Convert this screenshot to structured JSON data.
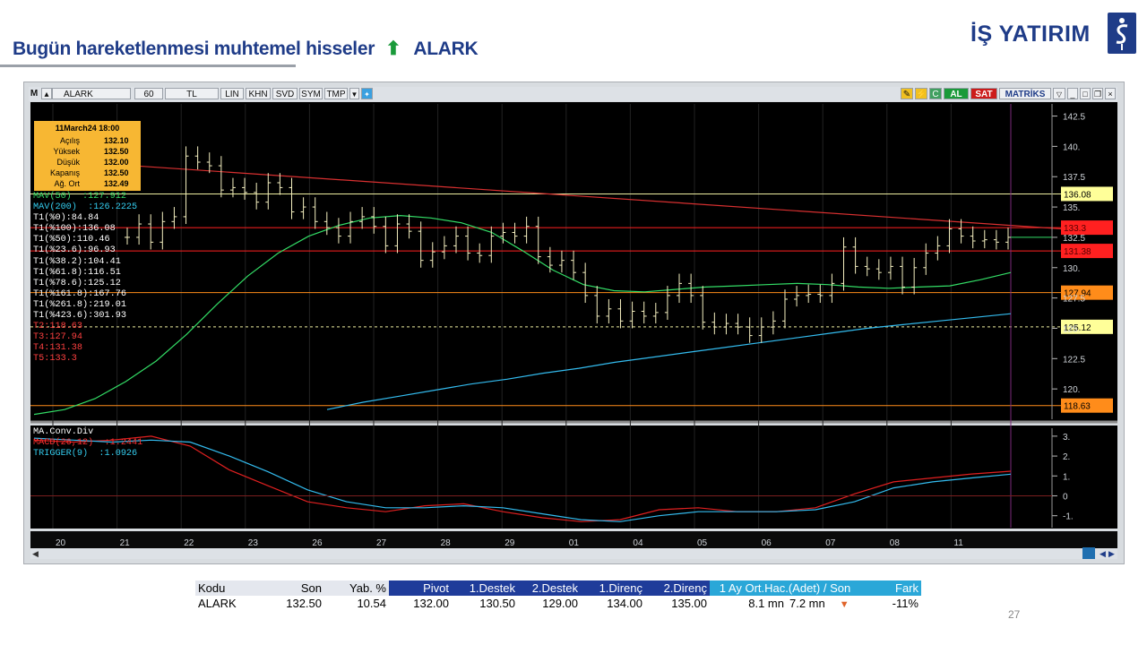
{
  "header": {
    "title": "Bugün hareketlenmesi muhtemel hisseler",
    "arrow_icon": "up-arrow-icon",
    "ticker": "ALARK",
    "logo_text": "İŞ YATIRIM",
    "accent_color": "#1f3c88",
    "arrow_color": "#1a9a3a"
  },
  "toolbar": {
    "app_letter": "M",
    "symbol": "ALARK",
    "period": "60",
    "currency": "TL",
    "buttons": [
      "LIN",
      "KHN",
      "SVD",
      "SYM",
      "TMP"
    ],
    "buy_label": "AL",
    "sell_label": "SAT",
    "brand": "MATRİKS"
  },
  "info_box": {
    "date": "11March24 18:00",
    "rows": [
      {
        "label": "Açılış",
        "value": "132.10"
      },
      {
        "label": "Yüksek",
        "value": "132.50"
      },
      {
        "label": "Düşük",
        "value": "132.00"
      },
      {
        "label": "Kapanış",
        "value": "132.50"
      },
      {
        "label": "Ağ. Ort",
        "value": "132.49"
      }
    ]
  },
  "indicator_labels": [
    {
      "text": "MAV(50)",
      "value": ":127.912",
      "color": "#33dd66"
    },
    {
      "text": "MAV(200)",
      "value": ":126.2225",
      "color": "#33ccee"
    },
    {
      "text": "T1(%0):84.84",
      "value": "",
      "color": "#ffffff"
    },
    {
      "text": "T1(%100):136.08",
      "value": "",
      "color": "#ffffff"
    },
    {
      "text": "T1(%50):110.46",
      "value": "",
      "color": "#ffffff"
    },
    {
      "text": "T1(%23.6):96.93",
      "value": "",
      "color": "#ffffff"
    },
    {
      "text": "T1(%38.2):104.41",
      "value": "",
      "color": "#ffffff"
    },
    {
      "text": "T1(%61.8):116.51",
      "value": "",
      "color": "#ffffff"
    },
    {
      "text": "T1(%78.6):125.12",
      "value": "",
      "color": "#ffffff"
    },
    {
      "text": "T1(%161.8):167.76",
      "value": "",
      "color": "#ffffff"
    },
    {
      "text": "T1(%261.8):219.01",
      "value": "",
      "color": "#ffffff"
    },
    {
      "text": "T1(%423.6):301.93",
      "value": "",
      "color": "#ffffff"
    },
    {
      "text": "T2:118.63",
      "value": "",
      "color": "#ff4040"
    },
    {
      "text": "T3:127.94",
      "value": "",
      "color": "#ff4040"
    },
    {
      "text": "T4:131.38",
      "value": "",
      "color": "#ff4040"
    },
    {
      "text": "T5:133.3",
      "value": "",
      "color": "#ff4040"
    }
  ],
  "macd_labels": [
    {
      "text": "MA.Conv.Div",
      "value": "",
      "color": "#ffffff"
    },
    {
      "text": "MACD(26,12)",
      "value": ":1.2441",
      "color": "#ff3030"
    },
    {
      "text": "TRIGGER(9)",
      "value": ":1.0926",
      "color": "#33ccee"
    }
  ],
  "chart_data": {
    "type": "line",
    "symbol": "ALARK",
    "interval": "60",
    "price_axis": {
      "ticks": [
        "142.5",
        "140.",
        "137.5",
        "135.",
        "132.5",
        "130.",
        "127.5",
        "125.",
        "122.5",
        "120."
      ],
      "ylim": [
        117.5,
        143.5
      ]
    },
    "macd_axis": {
      "ticks": [
        "3.",
        "2.",
        "1.",
        "0",
        "-1."
      ],
      "ylim": [
        -1.6,
        3.4
      ]
    },
    "x_labels": [
      "20",
      "21",
      "22",
      "23",
      "26",
      "27",
      "28",
      "29",
      "01",
      "04",
      "05",
      "06",
      "07",
      "08",
      "11"
    ],
    "price_ohlc_closes": [
      132.5,
      133.6,
      132.1,
      133.8,
      134.2,
      139.2,
      138.7,
      138.4,
      136.4,
      136.6,
      136.2,
      135.4,
      137.0,
      136.6,
      134.6,
      135.0,
      133.8,
      133.3,
      132.6,
      133.8,
      134.2,
      133.4,
      131.8,
      133.6,
      133.0,
      130.6,
      131.3,
      131.8,
      132.6,
      131.2,
      131.0,
      132.6,
      132.9,
      132.6,
      133.4,
      130.9,
      130.2,
      130.6,
      129.6,
      127.7,
      126.0,
      126.6,
      125.6,
      126.4,
      126.0,
      126.3,
      127.7,
      128.7,
      127.7,
      125.5,
      125.1,
      125.4,
      125.1,
      124.4,
      125.1,
      125.6,
      127.4,
      127.7,
      127.8,
      127.7,
      128.7,
      131.7,
      130.1,
      129.9,
      129.6,
      130.1,
      128.4,
      130.0,
      131.2,
      131.8,
      133.2,
      132.6,
      132.2,
      132.3,
      132.1,
      132.5
    ],
    "ma50": [
      117.9,
      118.3,
      119.2,
      120.6,
      122.3,
      124.5,
      127.0,
      129.3,
      131.2,
      132.6,
      133.5,
      134.1,
      134.3,
      134.1,
      133.7,
      132.9,
      131.4,
      129.8,
      128.6,
      128.1,
      128.0,
      128.2,
      128.4,
      128.5,
      128.6,
      128.7,
      128.6,
      128.4,
      128.3,
      128.4,
      128.5,
      129.0,
      129.6
    ],
    "ma200": [
      118.3,
      118.9,
      119.4,
      119.9,
      120.4,
      120.8,
      121.3,
      121.7,
      122.2,
      122.6,
      123.0,
      123.4,
      123.8,
      124.2,
      124.6,
      125.0,
      125.3,
      125.6,
      125.9,
      126.2
    ],
    "levels": [
      {
        "label": "136.08",
        "value": 136.08,
        "color": "#ffff99"
      },
      {
        "label": "133.3",
        "value": 133.3,
        "color": "#ff2020"
      },
      {
        "label": "131.38",
        "value": 131.38,
        "color": "#ff2020"
      },
      {
        "label": "127.94",
        "value": 127.94,
        "color": "#ff8c1a"
      },
      {
        "label": "125.12",
        "value": 125.12,
        "color": "#ffff99"
      },
      {
        "label": "118.63",
        "value": 118.63,
        "color": "#ff8c1a"
      }
    ],
    "trendline": {
      "from": 138.4,
      "to": 133.2
    },
    "macd": [
      2.8,
      2.7,
      2.8,
      3.0,
      2.5,
      1.3,
      0.5,
      -0.3,
      -0.6,
      -0.8,
      -0.5,
      -0.4,
      -0.8,
      -1.1,
      -1.3,
      -1.2,
      -0.7,
      -0.6,
      -0.8,
      -0.8,
      -0.6,
      0.1,
      0.7,
      0.9,
      1.1,
      1.24
    ],
    "trigger": [
      2.9,
      2.8,
      2.7,
      2.8,
      2.7,
      2.0,
      1.2,
      0.3,
      -0.3,
      -0.6,
      -0.6,
      -0.5,
      -0.6,
      -0.9,
      -1.2,
      -1.3,
      -1.0,
      -0.8,
      -0.8,
      -0.8,
      -0.7,
      -0.3,
      0.4,
      0.7,
      0.9,
      1.09
    ]
  },
  "table": {
    "headers": [
      "Kodu",
      "Son",
      "Yab. %",
      "Pivot",
      "1.Destek",
      "2.Destek",
      "1.Direnç",
      "2.Direnç",
      "1 Ay Ort.Hac.(Adet)  /  Son",
      "Fark"
    ],
    "row": {
      "kodu": "ALARK",
      "son": "132.50",
      "yab": "10.54",
      "pivot": "132.00",
      "destek1": "130.50",
      "destek2": "129.00",
      "direnc1": "134.00",
      "direnc2": "135.00",
      "hacim_ort": "8.1 mn",
      "hacim_son": "7.2 mn",
      "fark_icon": "down-triangle-icon",
      "fark": "-11%"
    }
  },
  "page_number": "27"
}
